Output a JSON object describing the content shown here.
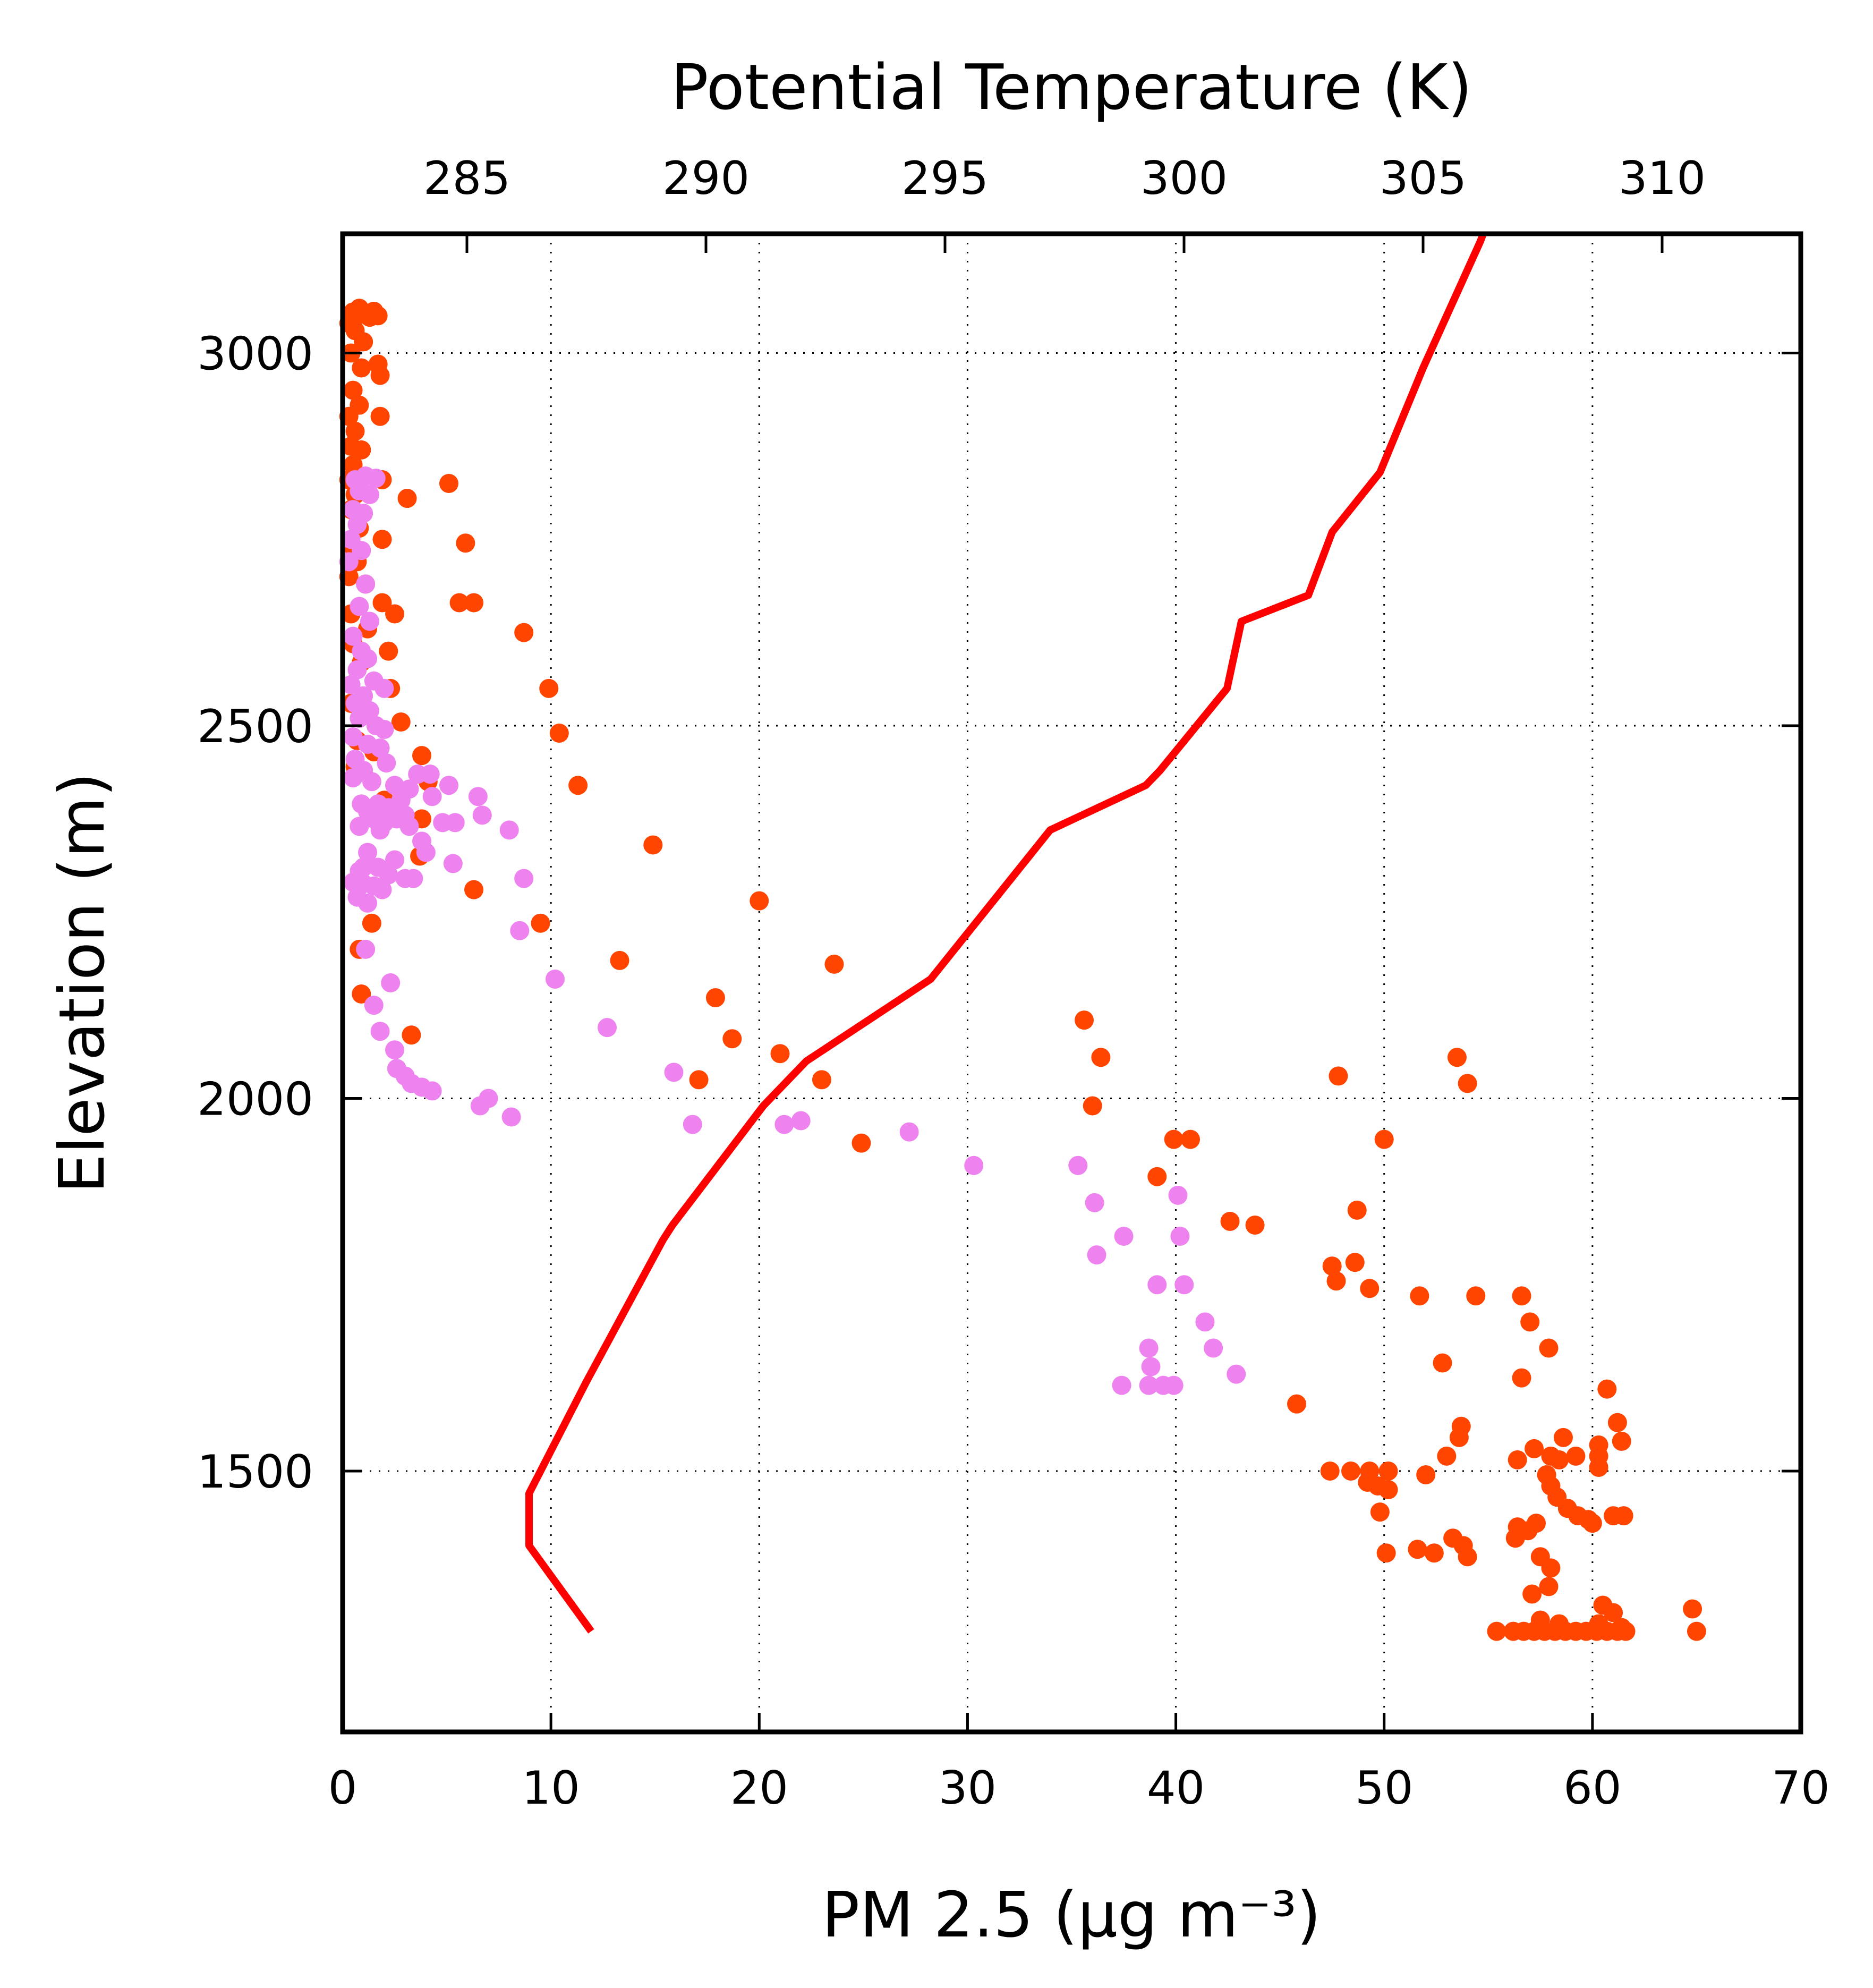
{
  "chart_data": {
    "type": "scatter",
    "xlabel": "PM 2.5 (μg m⁻³)",
    "ylabel": "Elevation (m)",
    "x2label": "Potential Temperature (K)",
    "xlim": [
      0,
      70
    ],
    "ylim": [
      1150,
      3160
    ],
    "x2lim": [
      282.4,
      312.9
    ],
    "x_ticks": [
      0,
      10,
      20,
      30,
      40,
      50,
      60,
      70
    ],
    "y_ticks": [
      1500,
      2000,
      2500,
      3000
    ],
    "x2_ticks": [
      285,
      290,
      295,
      300,
      305,
      310
    ],
    "grid": true,
    "colors": {
      "series_a": "#ff4500",
      "series_b": "#ee82ee",
      "theta_line": "#ff0000"
    },
    "series": [
      {
        "color_key": "series_a",
        "points": [
          [
            0.5,
            3055
          ],
          [
            0.8,
            3060
          ],
          [
            1.0,
            3052
          ],
          [
            1.3,
            3048
          ],
          [
            1.5,
            3056
          ],
          [
            1.7,
            3050
          ],
          [
            0.3,
            3040
          ],
          [
            0.6,
            3030
          ],
          [
            1.0,
            3015
          ],
          [
            0.4,
            3000
          ],
          [
            0.9,
            2980
          ],
          [
            1.7,
            2985
          ],
          [
            1.8,
            2970
          ],
          [
            0.5,
            2950
          ],
          [
            0.8,
            2930
          ],
          [
            0.3,
            2915
          ],
          [
            1.8,
            2915
          ],
          [
            0.6,
            2895
          ],
          [
            0.4,
            2875
          ],
          [
            0.9,
            2870
          ],
          [
            0.5,
            2850
          ],
          [
            0.3,
            2830
          ],
          [
            1.9,
            2830
          ],
          [
            0.6,
            2810
          ],
          [
            3.1,
            2805
          ],
          [
            5.1,
            2825
          ],
          [
            0.4,
            2790
          ],
          [
            0.8,
            2765
          ],
          [
            1.9,
            2750
          ],
          [
            0.5,
            2740
          ],
          [
            5.9,
            2745
          ],
          [
            0.7,
            2720
          ],
          [
            0.3,
            2700
          ],
          [
            1.1,
            2690
          ],
          [
            1.9,
            2665
          ],
          [
            5.6,
            2665
          ],
          [
            6.3,
            2665
          ],
          [
            0.4,
            2650
          ],
          [
            2.5,
            2650
          ],
          [
            1.2,
            2630
          ],
          [
            8.7,
            2625
          ],
          [
            0.5,
            2610
          ],
          [
            2.2,
            2600
          ],
          [
            0.9,
            2585
          ],
          [
            2.3,
            2550
          ],
          [
            9.9,
            2550
          ],
          [
            0.4,
            2530
          ],
          [
            2.8,
            2505
          ],
          [
            10.4,
            2490
          ],
          [
            0.7,
            2480
          ],
          [
            1.5,
            2465
          ],
          [
            3.8,
            2460
          ],
          [
            0.6,
            2445
          ],
          [
            4.1,
            2425
          ],
          [
            11.3,
            2420
          ],
          [
            2.0,
            2400
          ],
          [
            1.3,
            2385
          ],
          [
            3.8,
            2375
          ],
          [
            14.9,
            2340
          ],
          [
            3.7,
            2325
          ],
          [
            6.3,
            2280
          ],
          [
            20.0,
            2265
          ],
          [
            9.5,
            2235
          ],
          [
            1.4,
            2235
          ],
          [
            0.8,
            2200
          ],
          [
            13.3,
            2185
          ],
          [
            23.6,
            2180
          ],
          [
            17.9,
            2135
          ],
          [
            0.9,
            2140
          ],
          [
            18.7,
            2080
          ],
          [
            3.3,
            2085
          ],
          [
            21.0,
            2060
          ],
          [
            17.1,
            2025
          ],
          [
            23.0,
            2025
          ],
          [
            24.9,
            1940
          ],
          [
            35.6,
            2105
          ],
          [
            36.4,
            2055
          ],
          [
            36.0,
            1990
          ],
          [
            39.9,
            1945
          ],
          [
            40.7,
            1945
          ],
          [
            39.1,
            1895
          ],
          [
            42.6,
            1835
          ],
          [
            43.8,
            1830
          ],
          [
            47.8,
            2030
          ],
          [
            48.7,
            1850
          ],
          [
            50.0,
            1945
          ],
          [
            53.5,
            2055
          ],
          [
            54.0,
            2020
          ],
          [
            47.5,
            1775
          ],
          [
            48.6,
            1780
          ],
          [
            47.7,
            1755
          ],
          [
            49.3,
            1745
          ],
          [
            51.7,
            1735
          ],
          [
            54.4,
            1735
          ],
          [
            56.6,
            1735
          ],
          [
            57.0,
            1700
          ],
          [
            52.8,
            1645
          ],
          [
            57.9,
            1665
          ],
          [
            56.6,
            1625
          ],
          [
            45.8,
            1590
          ],
          [
            60.7,
            1610
          ],
          [
            53.7,
            1560
          ],
          [
            53.6,
            1545
          ],
          [
            61.2,
            1565
          ],
          [
            61.4,
            1540
          ],
          [
            57.2,
            1530
          ],
          [
            58.0,
            1520
          ],
          [
            58.6,
            1545
          ],
          [
            59.2,
            1520
          ],
          [
            58.4,
            1515
          ],
          [
            60.3,
            1535
          ],
          [
            60.3,
            1520
          ],
          [
            56.4,
            1515
          ],
          [
            53.0,
            1520
          ],
          [
            47.4,
            1500
          ],
          [
            48.4,
            1500
          ],
          [
            49.3,
            1500
          ],
          [
            50.2,
            1500
          ],
          [
            57.8,
            1495
          ],
          [
            60.3,
            1505
          ],
          [
            52.0,
            1495
          ],
          [
            49.2,
            1485
          ],
          [
            49.7,
            1480
          ],
          [
            50.2,
            1475
          ],
          [
            58.0,
            1480
          ],
          [
            58.3,
            1465
          ],
          [
            58.8,
            1450
          ],
          [
            59.3,
            1440
          ],
          [
            59.8,
            1435
          ],
          [
            61.0,
            1440
          ],
          [
            61.5,
            1440
          ],
          [
            49.8,
            1445
          ],
          [
            60.0,
            1430
          ],
          [
            57.3,
            1430
          ],
          [
            56.4,
            1425
          ],
          [
            56.9,
            1420
          ],
          [
            56.3,
            1410
          ],
          [
            53.3,
            1410
          ],
          [
            53.8,
            1400
          ],
          [
            51.6,
            1395
          ],
          [
            52.4,
            1390
          ],
          [
            54.0,
            1385
          ],
          [
            50.1,
            1390
          ],
          [
            57.5,
            1385
          ],
          [
            58.0,
            1370
          ],
          [
            57.9,
            1345
          ],
          [
            57.1,
            1335
          ],
          [
            60.5,
            1320
          ],
          [
            61.0,
            1310
          ],
          [
            64.8,
            1315
          ],
          [
            60.3,
            1295
          ],
          [
            59.2,
            1285
          ],
          [
            55.4,
            1285
          ],
          [
            56.2,
            1285
          ],
          [
            56.7,
            1285
          ],
          [
            57.2,
            1285
          ],
          [
            57.7,
            1285
          ],
          [
            58.2,
            1285
          ],
          [
            58.7,
            1285
          ],
          [
            59.7,
            1285
          ],
          [
            60.2,
            1285
          ],
          [
            60.7,
            1285
          ],
          [
            61.2,
            1285
          ],
          [
            61.6,
            1285
          ],
          [
            65.0,
            1285
          ],
          [
            58.4,
            1295
          ],
          [
            57.5,
            1300
          ],
          [
            61.4,
            1290
          ]
        ]
      },
      {
        "color_key": "series_b",
        "points": [
          [
            0.6,
            2830
          ],
          [
            1.1,
            2835
          ],
          [
            1.6,
            2832
          ],
          [
            0.8,
            2815
          ],
          [
            1.3,
            2810
          ],
          [
            0.5,
            2790
          ],
          [
            1.0,
            2785
          ],
          [
            0.7,
            2770
          ],
          [
            0.4,
            2750
          ],
          [
            0.9,
            2735
          ],
          [
            0.3,
            2720
          ],
          [
            1.1,
            2690
          ],
          [
            0.8,
            2660
          ],
          [
            1.3,
            2640
          ],
          [
            0.5,
            2620
          ],
          [
            0.9,
            2600
          ],
          [
            1.2,
            2590
          ],
          [
            0.7,
            2575
          ],
          [
            1.5,
            2560
          ],
          [
            0.4,
            2555
          ],
          [
            2.0,
            2550
          ],
          [
            1.0,
            2540
          ],
          [
            0.6,
            2530
          ],
          [
            1.3,
            2520
          ],
          [
            0.8,
            2510
          ],
          [
            1.6,
            2500
          ],
          [
            2.0,
            2495
          ],
          [
            0.5,
            2485
          ],
          [
            1.2,
            2475
          ],
          [
            1.8,
            2470
          ],
          [
            0.6,
            2455
          ],
          [
            2.1,
            2450
          ],
          [
            1.0,
            2440
          ],
          [
            0.5,
            2430
          ],
          [
            1.4,
            2425
          ],
          [
            2.5,
            2420
          ],
          [
            3.6,
            2435
          ],
          [
            4.2,
            2435
          ],
          [
            5.1,
            2420
          ],
          [
            3.2,
            2415
          ],
          [
            4.3,
            2405
          ],
          [
            6.5,
            2405
          ],
          [
            2.8,
            2400
          ],
          [
            0.9,
            2395
          ],
          [
            1.7,
            2395
          ],
          [
            2.2,
            2390
          ],
          [
            1.2,
            2385
          ],
          [
            3.0,
            2380
          ],
          [
            2.6,
            2375
          ],
          [
            4.8,
            2370
          ],
          [
            5.4,
            2370
          ],
          [
            6.7,
            2380
          ],
          [
            1.5,
            2375
          ],
          [
            3.2,
            2365
          ],
          [
            2.0,
            2370
          ],
          [
            0.8,
            2365
          ],
          [
            1.8,
            2360
          ],
          [
            8.0,
            2360
          ],
          [
            3.8,
            2345
          ],
          [
            4.0,
            2330
          ],
          [
            1.2,
            2330
          ],
          [
            2.5,
            2320
          ],
          [
            5.3,
            2315
          ],
          [
            1.0,
            2310
          ],
          [
            1.7,
            2310
          ],
          [
            0.8,
            2305
          ],
          [
            2.2,
            2300
          ],
          [
            3.0,
            2295
          ],
          [
            3.4,
            2295
          ],
          [
            8.7,
            2295
          ],
          [
            0.5,
            2290
          ],
          [
            1.0,
            2288
          ],
          [
            1.5,
            2285
          ],
          [
            1.9,
            2280
          ],
          [
            0.7,
            2270
          ],
          [
            1.2,
            2262
          ],
          [
            8.5,
            2225
          ],
          [
            1.1,
            2200
          ],
          [
            10.2,
            2160
          ],
          [
            2.3,
            2155
          ],
          [
            1.5,
            2125
          ],
          [
            12.7,
            2095
          ],
          [
            1.8,
            2090
          ],
          [
            2.5,
            2065
          ],
          [
            2.6,
            2040
          ],
          [
            3.0,
            2030
          ],
          [
            3.3,
            2020
          ],
          [
            3.8,
            2015
          ],
          [
            4.3,
            2010
          ],
          [
            15.9,
            2035
          ],
          [
            7.0,
            2000
          ],
          [
            6.6,
            1990
          ],
          [
            8.1,
            1975
          ],
          [
            16.8,
            1965
          ],
          [
            21.2,
            1965
          ],
          [
            22.0,
            1970
          ],
          [
            27.2,
            1955
          ],
          [
            30.3,
            1910
          ],
          [
            35.3,
            1910
          ],
          [
            40.1,
            1870
          ],
          [
            36.1,
            1860
          ],
          [
            37.5,
            1815
          ],
          [
            40.2,
            1815
          ],
          [
            36.2,
            1790
          ],
          [
            39.1,
            1750
          ],
          [
            40.4,
            1750
          ],
          [
            41.4,
            1700
          ],
          [
            41.8,
            1665
          ],
          [
            38.7,
            1665
          ],
          [
            38.8,
            1640
          ],
          [
            42.9,
            1630
          ],
          [
            37.4,
            1615
          ],
          [
            38.7,
            1615
          ],
          [
            39.4,
            1615
          ],
          [
            39.9,
            1615
          ]
        ]
      }
    ],
    "theta_line": {
      "color_key": "theta_line",
      "points": [
        [
          287.6,
          1285
        ],
        [
          286.3,
          1400
        ],
        [
          286.3,
          1470
        ],
        [
          287.5,
          1620
        ],
        [
          289.1,
          1810
        ],
        [
          289.3,
          1830
        ],
        [
          291.2,
          1990
        ],
        [
          292.1,
          2050
        ],
        [
          294.7,
          2160
        ],
        [
          297.2,
          2360
        ],
        [
          299.2,
          2420
        ],
        [
          299.5,
          2440
        ],
        [
          300.9,
          2550
        ],
        [
          301.2,
          2640
        ],
        [
          302.6,
          2675
        ],
        [
          303.1,
          2760
        ],
        [
          304.1,
          2840
        ],
        [
          305.0,
          2980
        ],
        [
          306.2,
          3150
        ],
        [
          306.4,
          3185
        ]
      ]
    }
  }
}
